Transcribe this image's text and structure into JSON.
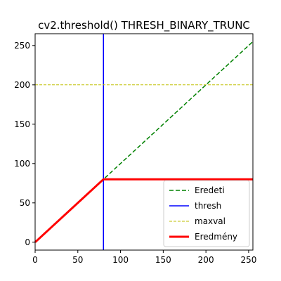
{
  "chart_data": {
    "type": "line",
    "title": "cv2.threshold() THRESH_BINARY_TRUNC",
    "xlabel": "",
    "ylabel": "",
    "xlim": [
      0,
      255
    ],
    "ylim": [
      -10,
      265
    ],
    "xticks": [
      0,
      50,
      100,
      150,
      200,
      250
    ],
    "yticks": [
      0,
      50,
      100,
      150,
      200,
      250
    ],
    "grid": false,
    "legend_position": "lower-right",
    "thresh": 80,
    "maxval": 200,
    "series": [
      {
        "name": "Eredeti",
        "kind": "line",
        "x": [
          0,
          255
        ],
        "y": [
          0,
          255
        ],
        "color": "#008000",
        "style": "dashed"
      },
      {
        "name": "thresh",
        "kind": "vline",
        "x": [
          80
        ],
        "color": "#0000ff",
        "style": "solid"
      },
      {
        "name": "maxval",
        "kind": "hline",
        "y": [
          200
        ],
        "color": "#bfbf00",
        "style": "dashed"
      },
      {
        "name": "Eredmény",
        "kind": "line",
        "x": [
          0,
          80,
          255
        ],
        "y": [
          0,
          80,
          80
        ],
        "color": "#ff0000",
        "style": "solid-thick"
      }
    ]
  }
}
